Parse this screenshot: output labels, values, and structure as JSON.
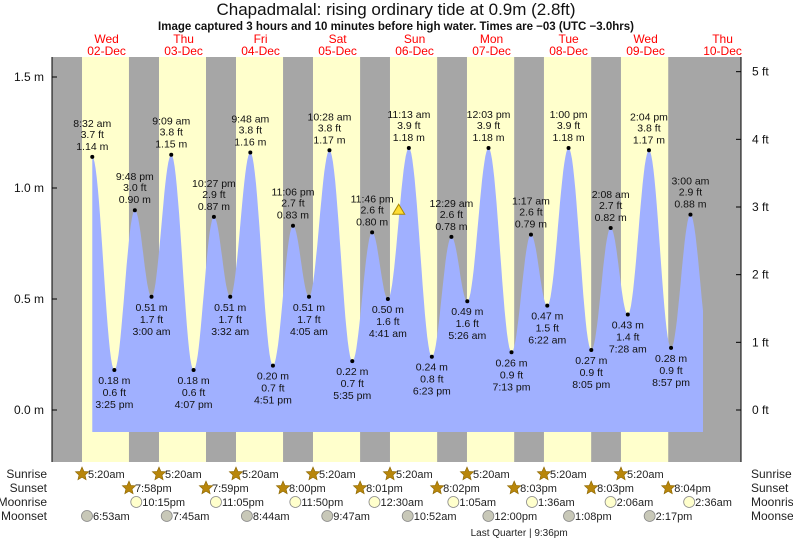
{
  "colors": {
    "night": "#a6a6a6",
    "day": "#ffffcc",
    "water": "#a0b0ff",
    "day_label": "#ff0000",
    "sun": "#b8860b",
    "moonrise": "#ffffcc",
    "moonset": "#c8c8b8"
  },
  "chart_data": {
    "type": "area",
    "title": "Chapadmalal: rising  ordinary tide at 0.9m (2.8ft)",
    "subtitle": "Image captured 3 hours and 10 minutes before high water. Times are −03 (UTC −3.0hrs)",
    "ylabel_left": "m",
    "ylabel_right": "ft",
    "ylim_m": [
      -0.23,
      1.6
    ],
    "left_ticks": [
      {
        "v": 1.5,
        "label": "1.5 m"
      },
      {
        "v": 1.0,
        "label": "1.0 m"
      },
      {
        "v": 0.5,
        "label": "0.5 m"
      },
      {
        "v": 0.0,
        "label": "0.0 m"
      }
    ],
    "right_ticks": [
      {
        "v": 5,
        "label": "5 ft"
      },
      {
        "v": 4,
        "label": "4 ft"
      },
      {
        "v": 3,
        "label": "3 ft"
      },
      {
        "v": 2,
        "label": "2 ft"
      },
      {
        "v": 1,
        "label": "1 ft"
      },
      {
        "v": 0,
        "label": "0 ft"
      }
    ],
    "days": [
      {
        "dow": "Wed",
        "date": "02-Dec"
      },
      {
        "dow": "Thu",
        "date": "03-Dec"
      },
      {
        "dow": "Fri",
        "date": "04-Dec"
      },
      {
        "dow": "Sat",
        "date": "05-Dec"
      },
      {
        "dow": "Sun",
        "date": "06-Dec"
      },
      {
        "dow": "Mon",
        "date": "07-Dec"
      },
      {
        "dow": "Tue",
        "date": "08-Dec"
      },
      {
        "dow": "Wed",
        "date": "09-Dec"
      },
      {
        "dow": "Thu",
        "date": "10-Dec"
      }
    ],
    "current": {
      "day": 4,
      "time": "8:03 am",
      "m": 0.9
    },
    "tides": [
      {
        "day": 0,
        "type": "high",
        "time": "8:32 am",
        "ft": "3.7 ft",
        "m": 1.14
      },
      {
        "day": 0,
        "type": "low",
        "time": "3:25 pm",
        "ft": "0.6 ft",
        "m": 0.18
      },
      {
        "day": 0,
        "type": "high",
        "time": "9:48 pm",
        "ft": "3.0 ft",
        "m": 0.9
      },
      {
        "day": 1,
        "type": "low",
        "time": "3:00 am",
        "ft": "1.7 ft",
        "m": 0.51
      },
      {
        "day": 1,
        "type": "high",
        "time": "9:09 am",
        "ft": "3.8 ft",
        "m": 1.15
      },
      {
        "day": 1,
        "type": "low",
        "time": "4:07 pm",
        "ft": "0.6 ft",
        "m": 0.18
      },
      {
        "day": 1,
        "type": "high",
        "time": "10:27 pm",
        "ft": "2.9 ft",
        "m": 0.87
      },
      {
        "day": 2,
        "type": "low",
        "time": "3:32 am",
        "ft": "1.7 ft",
        "m": 0.51
      },
      {
        "day": 2,
        "type": "high",
        "time": "9:48 am",
        "ft": "3.8 ft",
        "m": 1.16
      },
      {
        "day": 2,
        "type": "low",
        "time": "4:51 pm",
        "ft": "0.7 ft",
        "m": 0.2
      },
      {
        "day": 2,
        "type": "high",
        "time": "11:06 pm",
        "ft": "2.7 ft",
        "m": 0.83
      },
      {
        "day": 3,
        "type": "low",
        "time": "4:05 am",
        "ft": "1.7 ft",
        "m": 0.51
      },
      {
        "day": 3,
        "type": "high",
        "time": "10:28 am",
        "ft": "3.8 ft",
        "m": 1.17
      },
      {
        "day": 3,
        "type": "low",
        "time": "5:35 pm",
        "ft": "0.7 ft",
        "m": 0.22
      },
      {
        "day": 3,
        "type": "high",
        "time": "11:46 pm",
        "ft": "2.6 ft",
        "m": 0.8
      },
      {
        "day": 4,
        "type": "low",
        "time": "4:41 am",
        "ft": "1.6 ft",
        "m": 0.5
      },
      {
        "day": 4,
        "type": "high",
        "time": "11:13 am",
        "ft": "3.9 ft",
        "m": 1.18
      },
      {
        "day": 4,
        "type": "low",
        "time": "6:23 pm",
        "ft": "0.8 ft",
        "m": 0.24
      },
      {
        "day": 5,
        "type": "high",
        "time": "12:29 am",
        "ft": "2.6 ft",
        "m": 0.78
      },
      {
        "day": 5,
        "type": "low",
        "time": "5:26 am",
        "ft": "1.6 ft",
        "m": 0.49
      },
      {
        "day": 5,
        "type": "high",
        "time": "12:03 pm",
        "ft": "3.9 ft",
        "m": 1.18
      },
      {
        "day": 5,
        "type": "low",
        "time": "7:13 pm",
        "ft": "0.9 ft",
        "m": 0.26
      },
      {
        "day": 6,
        "type": "high",
        "time": "1:17 am",
        "ft": "2.6 ft",
        "m": 0.79
      },
      {
        "day": 6,
        "type": "low",
        "time": "6:22 am",
        "ft": "1.5 ft",
        "m": 0.47
      },
      {
        "day": 6,
        "type": "high",
        "time": "1:00 pm",
        "ft": "3.9 ft",
        "m": 1.18
      },
      {
        "day": 6,
        "type": "low",
        "time": "8:05 pm",
        "ft": "0.9 ft",
        "m": 0.27
      },
      {
        "day": 7,
        "type": "high",
        "time": "2:08 am",
        "ft": "2.7 ft",
        "m": 0.82
      },
      {
        "day": 7,
        "type": "low",
        "time": "7:28 am",
        "ft": "1.4 ft",
        "m": 0.43
      },
      {
        "day": 7,
        "type": "high",
        "time": "2:04 pm",
        "ft": "3.8 ft",
        "m": 1.17
      },
      {
        "day": 7,
        "type": "low",
        "time": "8:57 pm",
        "ft": "0.9 ft",
        "m": 0.28
      },
      {
        "day": 8,
        "type": "high",
        "time": "3:00 am",
        "ft": "2.9 ft",
        "m": 0.88
      }
    ],
    "sun_moon": {
      "row_labels": {
        "sunrise": "Sunrise",
        "sunset": "Sunset",
        "moonrise": "Moonrise",
        "moonset": "Moonset"
      },
      "sunrise": [
        {
          "day": 0,
          "time": "5:20am"
        },
        {
          "day": 1,
          "time": "5:20am"
        },
        {
          "day": 2,
          "time": "5:20am"
        },
        {
          "day": 3,
          "time": "5:20am"
        },
        {
          "day": 4,
          "time": "5:20am"
        },
        {
          "day": 5,
          "time": "5:20am"
        },
        {
          "day": 6,
          "time": "5:20am"
        },
        {
          "day": 7,
          "time": "5:20am"
        }
      ],
      "sunset": [
        {
          "day": 0,
          "time": "7:58pm"
        },
        {
          "day": 1,
          "time": "7:59pm"
        },
        {
          "day": 2,
          "time": "8:00pm"
        },
        {
          "day": 3,
          "time": "8:01pm"
        },
        {
          "day": 4,
          "time": "8:02pm"
        },
        {
          "day": 5,
          "time": "8:03pm"
        },
        {
          "day": 6,
          "time": "8:03pm"
        },
        {
          "day": 7,
          "time": "8:04pm"
        }
      ],
      "moonrise": [
        {
          "day": 0,
          "time": "10:15pm"
        },
        {
          "day": 1,
          "time": "11:05pm"
        },
        {
          "day": 2,
          "time": "11:50pm"
        },
        {
          "day": 4,
          "time": "12:30am"
        },
        {
          "day": 5,
          "time": "1:05am"
        },
        {
          "day": 6,
          "time": "1:36am"
        },
        {
          "day": 7,
          "time": "2:06am"
        },
        {
          "day": 8,
          "time": "2:36am"
        }
      ],
      "moonset": [
        {
          "day": 0,
          "time": "6:53am"
        },
        {
          "day": 1,
          "time": "7:45am"
        },
        {
          "day": 2,
          "time": "8:44am"
        },
        {
          "day": 3,
          "time": "9:47am"
        },
        {
          "day": 4,
          "time": "10:52am"
        },
        {
          "day": 5,
          "time": "12:00pm"
        },
        {
          "day": 6,
          "time": "1:08pm"
        },
        {
          "day": 7,
          "time": "2:17pm"
        }
      ],
      "moon_phase": {
        "day": 5,
        "time": "9:36pm",
        "label": "Last Quarter | 9:36pm"
      }
    }
  }
}
